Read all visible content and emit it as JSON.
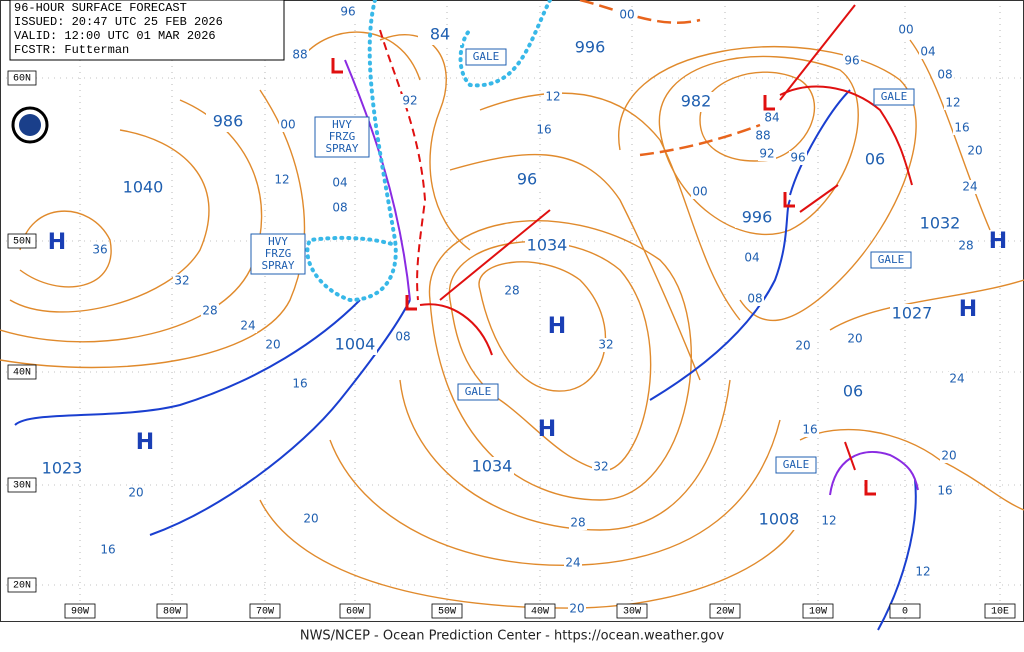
{
  "header": [
    "96-HOUR SURFACE FORECAST",
    "ISSUED: 20:47 UTC 25 FEB 2026",
    "VALID: 12:00 UTC 01 MAR 2026",
    "FCSTR: Futterman"
  ],
  "lat_labels": [
    "60N",
    "50N",
    "40N",
    "30N",
    "20N"
  ],
  "lon_labels": [
    "90W",
    "80W",
    "70W",
    "60W",
    "50W",
    "40W",
    "30W",
    "20W",
    "10W",
    "0",
    "10E"
  ],
  "pressure_labels": [
    "84",
    "996",
    "986",
    "1040",
    "982",
    "96",
    "1034",
    "996",
    "06",
    "1032",
    "1027",
    "1004",
    "06",
    "1034",
    "1023",
    "1008"
  ],
  "highs": [
    "H",
    "H",
    "H",
    "H",
    "H",
    "H"
  ],
  "isobar_labels": [
    "96",
    "88",
    "00",
    "12",
    "04",
    "08",
    "36",
    "32",
    "28",
    "24",
    "20",
    "16",
    "92",
    "12",
    "16",
    "28",
    "32",
    "32",
    "28",
    "24",
    "20",
    "20",
    "16",
    "20",
    "08",
    "00",
    "00",
    "04",
    "08",
    "12",
    "16",
    "20",
    "24",
    "28",
    "96",
    "88",
    "92",
    "96",
    "00",
    "04",
    "08",
    "20",
    "20",
    "24",
    "20",
    "16",
    "12",
    "16",
    "12",
    "84"
  ],
  "warnings": [
    "GALE",
    "GALE",
    "GALE",
    "GALE",
    "GALE"
  ],
  "spray_boxes": [
    [
      "HVY",
      "FRZG",
      "SPRAY"
    ],
    [
      "HVY",
      "FRZG",
      "SPRAY"
    ]
  ],
  "footer": "NWS/NCEP - Ocean Prediction Center - https://ocean.weather.gov"
}
